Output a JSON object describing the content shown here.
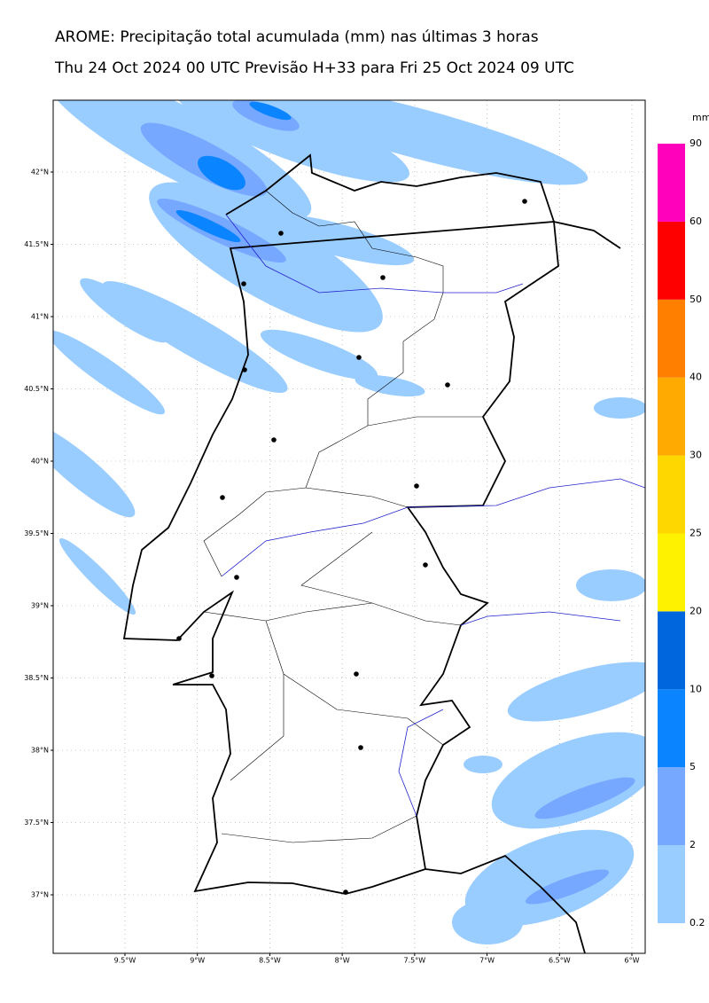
{
  "title": "AROME: Precipitação total acumulada (mm) nas últimas 3 horas",
  "subtitle": "Thu 24 Oct 2024 00 UTC Previsão H+33 para Fri 25 Oct 2024 09 UTC",
  "lat_ticks": [
    {
      "value": 42,
      "label": "42°N"
    },
    {
      "value": 41.5,
      "label": "41.5°N"
    },
    {
      "value": 41,
      "label": "41°N"
    },
    {
      "value": 40.5,
      "label": "40.5°N"
    },
    {
      "value": 40,
      "label": "40°N"
    },
    {
      "value": 39.5,
      "label": "39.5°N"
    },
    {
      "value": 39,
      "label": "39°N"
    },
    {
      "value": 38.5,
      "label": "38.5°N"
    },
    {
      "value": 38,
      "label": "38°N"
    },
    {
      "value": 37.5,
      "label": "37.5°N"
    },
    {
      "value": 37,
      "label": "37°N"
    }
  ],
  "lon_ticks": [
    {
      "value": -9.5,
      "label": "9.5°W"
    },
    {
      "value": -9,
      "label": "9°W"
    },
    {
      "value": -8.5,
      "label": "8.5°W"
    },
    {
      "value": -8,
      "label": "8°W"
    },
    {
      "value": -7.5,
      "label": "7.5°W"
    },
    {
      "value": -7,
      "label": "7°W"
    },
    {
      "value": -6.5,
      "label": "6.5°W"
    },
    {
      "value": -6,
      "label": "6°W"
    }
  ],
  "colorbar": {
    "unit": "mm",
    "levels": [
      0.2,
      2,
      5,
      10,
      20,
      25,
      30,
      40,
      50,
      60,
      90
    ],
    "colors": [
      "#99ccff",
      "#77a8ff",
      "#0a84ff",
      "#0066dd",
      "#fff200",
      "#ffd700",
      "#ffaa00",
      "#ff8000",
      "#ff0000",
      "#ff00bb"
    ]
  }
}
